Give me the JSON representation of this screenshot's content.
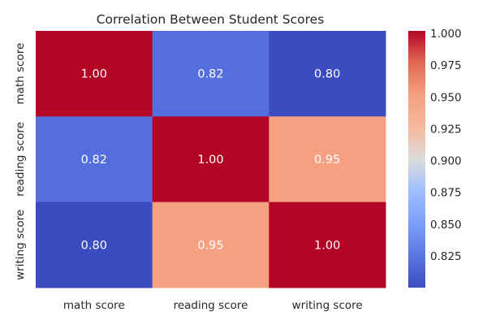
{
  "chart_data": {
    "type": "heatmap",
    "title": "Correlation Between Student Scores",
    "x_labels": [
      "math score",
      "reading score",
      "writing score"
    ],
    "y_labels": [
      "math score",
      "reading score",
      "writing score"
    ],
    "values": [
      [
        1.0,
        0.82,
        0.8
      ],
      [
        0.82,
        1.0,
        0.95
      ],
      [
        0.8,
        0.95,
        1.0
      ]
    ],
    "value_format_decimals": 2,
    "colormap": "coolwarm",
    "vmin": 0.8,
    "vmax": 1.0,
    "colorbar": {
      "ticks": [
        0.825,
        0.85,
        0.875,
        0.9,
        0.925,
        0.95,
        0.975,
        1.0
      ],
      "tick_labels": [
        "0.825",
        "0.850",
        "0.875",
        "0.900",
        "0.925",
        "0.950",
        "0.975",
        "1.000"
      ]
    }
  }
}
